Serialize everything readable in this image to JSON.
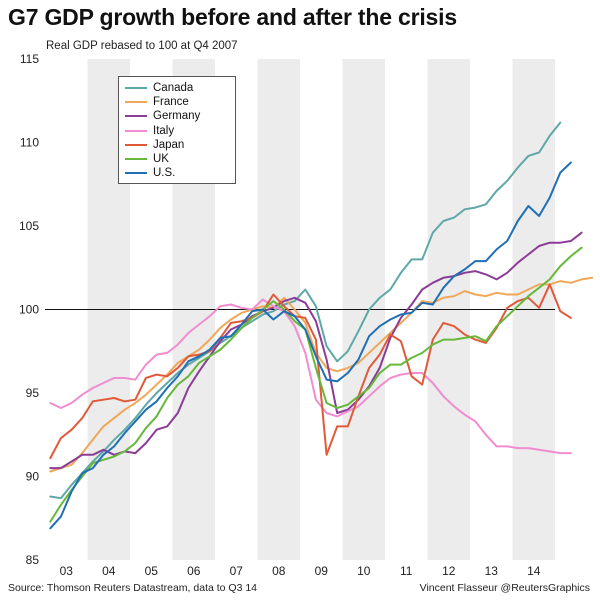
{
  "title": "G7 GDP growth before and after the crisis",
  "subtitle": "Real GDP rebased to 100 at Q4 2007",
  "footer": {
    "source": "Source: Thomson Reuters Datastream, data to Q3 14",
    "credit": "Vincent Flasseur @ReutersGraphics"
  },
  "chart_data": {
    "type": "line",
    "xlabel": "",
    "ylabel": "",
    "ylim": [
      85,
      115
    ],
    "yticks": [
      85,
      90,
      95,
      100,
      105,
      110,
      115
    ],
    "x_start_quarter": "Q1 2003",
    "year_labels": [
      "03",
      "04",
      "05",
      "06",
      "07",
      "08",
      "09",
      "10",
      "11",
      "12",
      "13",
      "14"
    ],
    "reference_line": 100,
    "grid": "alternating year bands",
    "legend_position": "top-left",
    "series": [
      {
        "name": "Canada",
        "color": "#5fa8a8",
        "values": [
          88.8,
          88.7,
          89.5,
          90.2,
          90.9,
          91.5,
          92.2,
          92.8,
          93.5,
          94.3,
          95.0,
          95.6,
          96.2,
          96.7,
          97.1,
          97.5,
          98.0,
          98.4,
          98.9,
          99.3,
          99.7,
          99.9,
          100.3,
          100.5,
          101.2,
          100.2,
          97.8,
          96.9,
          97.5,
          98.7,
          100.0,
          100.7,
          101.2,
          102.2,
          103.0,
          103.0,
          104.6,
          105.3,
          105.5,
          106.0,
          106.1,
          106.3,
          107.1,
          107.7,
          108.5,
          109.2,
          109.4,
          110.4,
          111.2
        ]
      },
      {
        "name": "France",
        "color": "#f0a75a",
        "values": [
          90.3,
          90.5,
          90.7,
          91.4,
          92.2,
          93.0,
          93.5,
          94.0,
          94.4,
          94.9,
          95.5,
          96.1,
          96.8,
          97.2,
          97.6,
          98.2,
          98.9,
          99.4,
          99.8,
          100.0,
          100.2,
          100.1,
          100.7,
          100.0,
          99.2,
          97.4,
          96.5,
          96.3,
          96.5,
          96.8,
          97.4,
          98.0,
          98.6,
          99.2,
          99.8,
          100.5,
          100.4,
          100.7,
          100.8,
          101.1,
          100.9,
          100.8,
          101.0,
          100.9,
          100.9,
          101.2,
          101.5,
          101.5,
          101.7,
          101.6,
          101.8,
          101.9
        ]
      },
      {
        "name": "Germany",
        "color": "#8b3c96",
        "values": [
          90.5,
          90.5,
          90.9,
          91.3,
          91.3,
          91.6,
          91.3,
          91.5,
          91.4,
          92.0,
          92.8,
          93.0,
          93.8,
          95.3,
          96.3,
          97.2,
          98.1,
          98.8,
          99.1,
          99.6,
          99.9,
          100.1,
          100.5,
          100.7,
          100.4,
          99.3,
          97.0,
          93.8,
          94.0,
          94.6,
          95.4,
          96.5,
          98.3,
          99.5,
          100.3,
          101.2,
          101.6,
          101.9,
          102.0,
          102.2,
          102.3,
          102.1,
          101.8,
          102.2,
          102.8,
          103.3,
          103.8,
          104.0,
          104.0,
          104.1,
          104.6
        ]
      },
      {
        "name": "Italy",
        "color": "#f08ccf",
        "values": [
          94.4,
          94.1,
          94.4,
          94.9,
          95.3,
          95.6,
          95.9,
          95.9,
          95.8,
          96.7,
          97.3,
          97.4,
          97.9,
          98.6,
          99.1,
          99.6,
          100.2,
          100.3,
          100.1,
          100.0,
          100.6,
          100.2,
          99.9,
          99.0,
          97.4,
          94.6,
          93.8,
          93.6,
          93.9,
          94.2,
          94.8,
          95.4,
          95.9,
          96.1,
          96.2,
          96.2,
          95.6,
          94.8,
          94.2,
          93.7,
          93.3,
          92.5,
          91.8,
          91.8,
          91.7,
          91.7,
          91.6,
          91.5,
          91.4,
          91.4
        ]
      },
      {
        "name": "Japan",
        "color": "#e05a3a",
        "values": [
          91.1,
          92.3,
          92.8,
          93.5,
          94.5,
          94.6,
          94.7,
          94.5,
          94.6,
          95.9,
          96.1,
          96.0,
          96.5,
          97.2,
          97.3,
          97.5,
          98.3,
          99.2,
          99.3,
          99.5,
          99.9,
          100.9,
          100.2,
          99.6,
          99.5,
          98.2,
          91.3,
          93.0,
          93.0,
          94.8,
          96.5,
          97.3,
          98.5,
          98.1,
          96.0,
          95.5,
          98.2,
          99.2,
          99.0,
          98.5,
          98.2,
          98.0,
          98.9,
          100.1,
          100.5,
          100.7,
          100.1,
          101.5,
          99.9,
          99.5
        ]
      },
      {
        "name": "UK",
        "color": "#66b83a",
        "values": [
          87.3,
          88.3,
          89.2,
          90.0,
          90.8,
          91.0,
          91.2,
          91.5,
          92.0,
          92.9,
          93.6,
          94.7,
          95.5,
          96.0,
          96.8,
          97.2,
          97.6,
          98.2,
          98.9,
          99.5,
          100.0,
          100.5,
          100.0,
          99.3,
          98.8,
          96.5,
          94.4,
          94.1,
          94.3,
          94.8,
          95.3,
          96.2,
          96.7,
          96.7,
          97.1,
          97.4,
          97.9,
          98.2,
          98.2,
          98.3,
          98.4,
          98.1,
          99.0,
          99.6,
          100.2,
          100.8,
          101.3,
          101.8,
          102.6,
          103.2,
          103.7
        ]
      },
      {
        "name": "U.S.",
        "color": "#1f6fb5",
        "values": [
          86.9,
          87.6,
          89.1,
          90.2,
          90.5,
          91.3,
          91.8,
          92.6,
          93.3,
          94.0,
          94.5,
          95.3,
          96.0,
          96.9,
          97.2,
          97.6,
          98.3,
          98.4,
          99.1,
          99.9,
          100.0,
          99.4,
          99.9,
          99.6,
          98.8,
          97.2,
          95.8,
          95.7,
          96.2,
          97.0,
          98.4,
          99.0,
          99.4,
          99.7,
          99.8,
          100.4,
          100.3,
          101.3,
          102.0,
          102.4,
          102.9,
          102.9,
          103.6,
          104.1,
          105.3,
          106.2,
          105.6,
          106.7,
          108.2,
          108.8
        ]
      }
    ]
  }
}
